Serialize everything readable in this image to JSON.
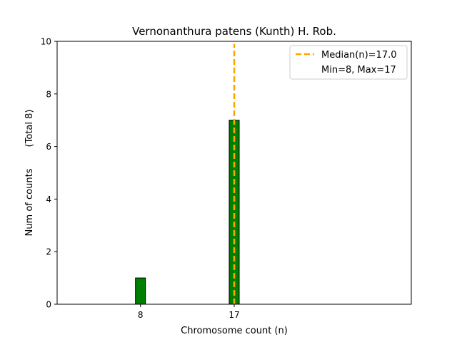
{
  "chart_data": {
    "type": "bar",
    "title": "Vernonanthura patens (Kunth) H. Rob.",
    "xlabel": "Chromosome count (n)",
    "ylabel": "Num of counts",
    "ylabel_total": "(Total 8)",
    "categories": [
      8,
      17
    ],
    "values": [
      1,
      7
    ],
    "x_ticks": [
      "8",
      "17"
    ],
    "y_ticks": [
      "0",
      "2",
      "4",
      "6",
      "8",
      "10"
    ],
    "xlim": [
      0,
      34
    ],
    "ylim": [
      0,
      10
    ],
    "grid": false,
    "bar_color": "#008000",
    "bar_edge_color": "#000000",
    "median": 17.0,
    "median_color": "#FFA500",
    "legend": {
      "placement": "top-right",
      "entries": [
        {
          "label": "Median(n)=17.0",
          "style": "dashed-line",
          "color": "#FFA500"
        },
        {
          "label": "Min=8, Max=17",
          "style": "none"
        }
      ]
    }
  }
}
